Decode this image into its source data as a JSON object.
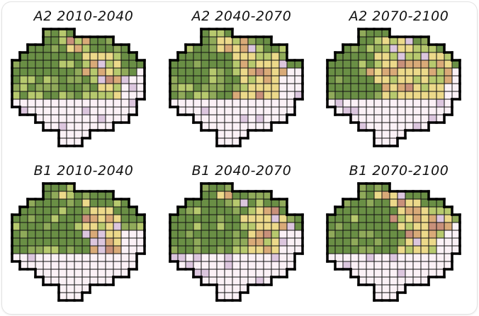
{
  "colors": {
    "dark_green": "#6a8f45",
    "olive_green": "#90aa5a",
    "light_green": "#b7c96e",
    "yellow": "#ecd98a",
    "tan": "#d9aa78",
    "brown": "#c8907a",
    "lavender": "#dcc6de",
    "pale_pink": "#fbf1f6",
    "grid_line": "#111111",
    "outline": "#000000"
  },
  "panels": [
    {
      "title": "A2 2010-2040",
      "grid": [
        "....gggg.........",
        "....ggyyyyggg....",
        "..gggggyyyggggg..",
        ".ggggggggyyyyggg.",
        "gggggggggyyyyyggg",
        "gggggggggyyyyyggp",
        "ggggggggggyyyyppp",
        "gggggggggggyyyppp",
        "gggggggggyyyyyppp",
        "pppppppppppppppp.",
        ".ppppppppppppppp.",
        "...pppppppppppp..",
        "....ppppppppp....",
        "......pppp.......",
        "......ppp........"
      ]
    },
    {
      "title": "A2 2040-2070",
      "grid": [
        "....gggg.........",
        "....ggyyyyggg....",
        "..ggggyyyyyyggg..",
        ".gggggggyyyyyyg..",
        "ggggggggyyyyyyygg",
        "ggggggggyyyyyyypp",
        "gggggggggyyyyyppp",
        "gggggggggyyyyyppp",
        "ggggggggyyyyyyppp",
        "pppppppppppppppp.",
        ".ppppppppppppppp.",
        "...pppppppppppp..",
        "....ppppppppp....",
        "......pppp.......",
        "......ppp........"
      ]
    },
    {
      "title": "A2 2070-2100",
      "grid": [
        "....gggg.........",
        "....ggyyyyygg....",
        "..gggggyyyyyyyg..",
        ".gggggyyyyyyyyyy.",
        "ggggggyyyyyyyyyyg",
        "gggggyyyyyyyyyyyp",
        "ggggggyyyyyyyyyyp",
        "gggggggyyyyyyyypp",
        "gggggggyyyyyyyypp",
        "pppppppppppppppp.",
        ".ppppppppppppppp.",
        "...pppppppppppp..",
        "....ppppppppp....",
        "......pppp.......",
        "......ppp........"
      ]
    },
    {
      "title": "B1 2010-2040",
      "grid": [
        "....gggg.........",
        "....ggyyggggg....",
        "..gggggggyggggg..",
        ".gggggggggyyyggg.",
        "gggggggggyyyyyggg",
        "gggggggggyyyyyggg",
        "gggggggggyyyyyppp",
        "ggggggggggyyyyppp",
        "ggggggggggyyyyppp",
        "pppppppppppppppp.",
        ".ppppppppppppppp.",
        "...pppppppppppp..",
        "....ppppppppp....",
        "......pppp.......",
        "......ppp........"
      ]
    },
    {
      "title": "B1 2040-2070",
      "grid": [
        "....gggg.........",
        "....ggyyggggg....",
        "..ggggggyyggggg..",
        ".gggggggggyyyyg..",
        "gggggggggyyyyyygg",
        "gggggggggyyyyyypg",
        "ggggggggggyyyyppp",
        "ggggggggggyyyyppp",
        "ggggggggggyyyyppp",
        "pppppppppppppppp.",
        ".ppppppppppppppp.",
        "...pppppppppppp..",
        "....ppppppppp....",
        "......pppp.......",
        "......ppp........"
      ]
    },
    {
      "title": "B1 2070-2100",
      "grid": [
        "....gggg.........",
        "....ggyyyyggg....",
        "..ggggggyyyyggg..",
        ".ggggggggyyyyyyy.",
        "ggggggggyyyyyyyyg",
        "gggggggggyyyyyyyp",
        "ggggggggggyyyyypp",
        "ggggggggggyyyyppp",
        "gggggggggyyyyyppp",
        "pppppppppppppppp.",
        ".ppppppppppppppp.",
        "...pppppppppppp..",
        "....ppppppppp....",
        "......pppp.......",
        "......ppp........"
      ]
    }
  ]
}
